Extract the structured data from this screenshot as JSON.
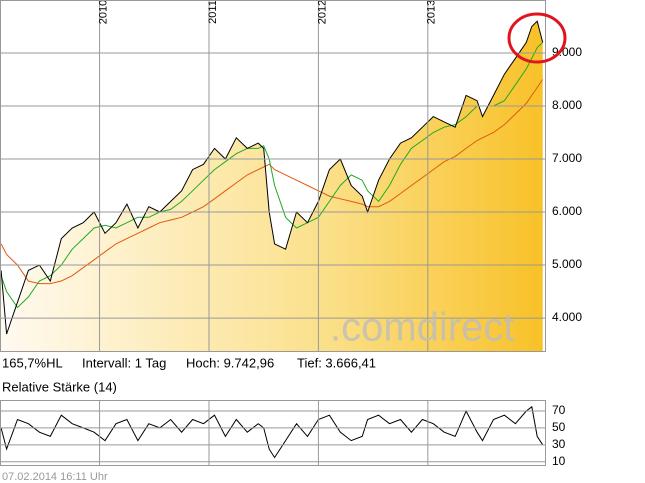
{
  "stats": [
    "165,7%HL",
    "Intervall: 1 Tag",
    "Hoch: 9.742,96",
    "Tief: 3.666,41"
  ],
  "watermark": ".comdirect",
  "timestamp": "07.02.2014 16:11 Uhr",
  "chart_data": [
    {
      "type": "line",
      "x": [
        2009.1,
        2009.15,
        2009.25,
        2009.35,
        2009.45,
        2009.55,
        2009.65,
        2009.75,
        2009.85,
        2009.95,
        2010.05,
        2010.15,
        2010.25,
        2010.35,
        2010.45,
        2010.55,
        2010.65,
        2010.75,
        2010.85,
        2010.95,
        2011.05,
        2011.15,
        2011.25,
        2011.35,
        2011.45,
        2011.5,
        2011.55,
        2011.6,
        2011.7,
        2011.8,
        2011.9,
        2012.0,
        2012.1,
        2012.2,
        2012.3,
        2012.4,
        2012.45,
        2012.55,
        2012.65,
        2012.75,
        2012.85,
        2012.95,
        2013.05,
        2013.15,
        2013.25,
        2013.35,
        2013.45,
        2013.5,
        2013.6,
        2013.7,
        2013.8,
        2013.9,
        2013.95,
        2014.0,
        2014.05
      ],
      "series": [
        {
          "color": "#000000",
          "values": [
            4900,
            3700,
            4300,
            4900,
            5000,
            4700,
            5500,
            5700,
            5800,
            6000,
            5600,
            5800,
            6150,
            5700,
            6100,
            6000,
            6200,
            6400,
            6800,
            6900,
            7200,
            7000,
            7400,
            7200,
            7300,
            7200,
            6000,
            5400,
            5300,
            6000,
            5800,
            6200,
            6800,
            7000,
            6500,
            6300,
            6000,
            6600,
            7000,
            7300,
            7400,
            7600,
            7800,
            7700,
            7600,
            8200,
            8100,
            7800,
            8200,
            8600,
            8900,
            9200,
            9500,
            9600,
            9200
          ]
        },
        {
          "color": "#22aa22",
          "values": [
            4800,
            4500,
            4200,
            4400,
            4700,
            4800,
            5000,
            5300,
            5500,
            5700,
            5750,
            5700,
            5800,
            5900,
            5900,
            6000,
            6050,
            6200,
            6400,
            6600,
            6800,
            6950,
            7100,
            7200,
            7200,
            7250,
            7000,
            6500,
            5900,
            5700,
            5800,
            5900,
            6200,
            6500,
            6700,
            6600,
            6400,
            6200,
            6500,
            6900,
            7200,
            7350,
            7500,
            7600,
            7650,
            7800,
            8000,
            8000,
            8000,
            8100,
            8400,
            8700,
            8900,
            9100,
            9200
          ]
        },
        {
          "color": "#e05a10",
          "values": [
            5400,
            5200,
            5000,
            4700,
            4650,
            4650,
            4700,
            4800,
            4950,
            5100,
            5250,
            5400,
            5500,
            5600,
            5700,
            5800,
            5850,
            5900,
            6000,
            6100,
            6250,
            6400,
            6550,
            6700,
            6800,
            6850,
            6900,
            6800,
            6700,
            6600,
            6500,
            6400,
            6300,
            6250,
            6200,
            6150,
            6100,
            6100,
            6200,
            6350,
            6500,
            6650,
            6800,
            6950,
            7050,
            7200,
            7350,
            7400,
            7500,
            7650,
            7850,
            8050,
            8200,
            8350,
            8500
          ]
        }
      ],
      "xlim": [
        2009.09,
        2014.08
      ],
      "xticks": [
        2010,
        2011,
        2012,
        2013
      ],
      "ylim": [
        3360,
        10000
      ],
      "yticks": [
        {
          "value": 4000,
          "label": "4.000"
        },
        {
          "value": 5000,
          "label": "5.000"
        },
        {
          "value": 6000,
          "label": "6.000"
        },
        {
          "value": 7000,
          "label": "7.000"
        },
        {
          "value": 8000,
          "label": "8.000"
        },
        {
          "value": 9000,
          "label": "9.000"
        }
      ],
      "grid": true
    },
    {
      "type": "line",
      "title": "Relative Stärke (14)",
      "x": [
        2009.1,
        2009.15,
        2009.25,
        2009.35,
        2009.45,
        2009.55,
        2009.65,
        2009.75,
        2009.85,
        2009.95,
        2010.05,
        2010.15,
        2010.25,
        2010.35,
        2010.45,
        2010.55,
        2010.65,
        2010.75,
        2010.85,
        2010.95,
        2011.05,
        2011.15,
        2011.25,
        2011.35,
        2011.45,
        2011.5,
        2011.55,
        2011.6,
        2011.7,
        2011.8,
        2011.9,
        2012.0,
        2012.1,
        2012.2,
        2012.3,
        2012.4,
        2012.45,
        2012.55,
        2012.65,
        2012.75,
        2012.85,
        2012.95,
        2013.05,
        2013.15,
        2013.25,
        2013.35,
        2013.45,
        2013.5,
        2013.6,
        2013.7,
        2013.8,
        2013.9,
        2013.95,
        2014.0,
        2014.05
      ],
      "series": [
        {
          "color": "#000000",
          "values": [
            50,
            25,
            60,
            55,
            45,
            40,
            65,
            55,
            50,
            45,
            35,
            55,
            60,
            35,
            55,
            50,
            60,
            45,
            60,
            55,
            65,
            40,
            60,
            45,
            55,
            50,
            25,
            15,
            35,
            55,
            40,
            60,
            65,
            45,
            35,
            40,
            60,
            65,
            55,
            60,
            45,
            60,
            55,
            45,
            40,
            70,
            45,
            35,
            60,
            65,
            55,
            70,
            75,
            40,
            30
          ]
        }
      ],
      "xlim": [
        2009.09,
        2014.08
      ],
      "xticks": [
        2010,
        2011,
        2012,
        2013
      ],
      "ylim": [
        5,
        83
      ],
      "yticks": [
        10,
        30,
        50,
        70
      ],
      "grid": true
    }
  ]
}
